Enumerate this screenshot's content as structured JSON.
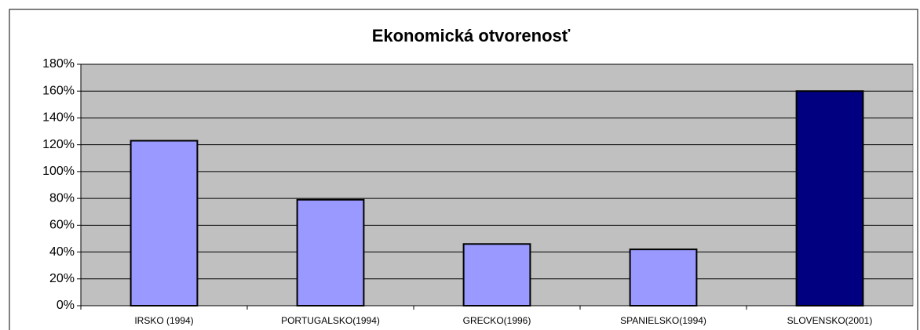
{
  "chart_data": {
    "type": "bar",
    "title": "Ekonomická otvorenosť",
    "categories": [
      "IRSKO (1994)",
      "PORTUGALSKO(1994)",
      "GRECKO(1996)",
      "SPANIELSKO(1994)",
      "SLOVENSKO(2001)"
    ],
    "values": [
      123,
      79,
      46,
      42,
      160
    ],
    "colors": [
      "#9999ff",
      "#9999ff",
      "#9999ff",
      "#9999ff",
      "#000080"
    ],
    "ylim": [
      0,
      180
    ],
    "yticks": [
      {
        "value": 0,
        "label": "0%"
      },
      {
        "value": 20,
        "label": "20%"
      },
      {
        "value": 40,
        "label": "40%"
      },
      {
        "value": 60,
        "label": "60%"
      },
      {
        "value": 80,
        "label": "80%"
      },
      {
        "value": 100,
        "label": "100%"
      },
      {
        "value": 120,
        "label": "120%"
      },
      {
        "value": 140,
        "label": "140%"
      },
      {
        "value": 160,
        "label": "160%"
      },
      {
        "value": 180,
        "label": "180%"
      }
    ],
    "grid": true
  }
}
